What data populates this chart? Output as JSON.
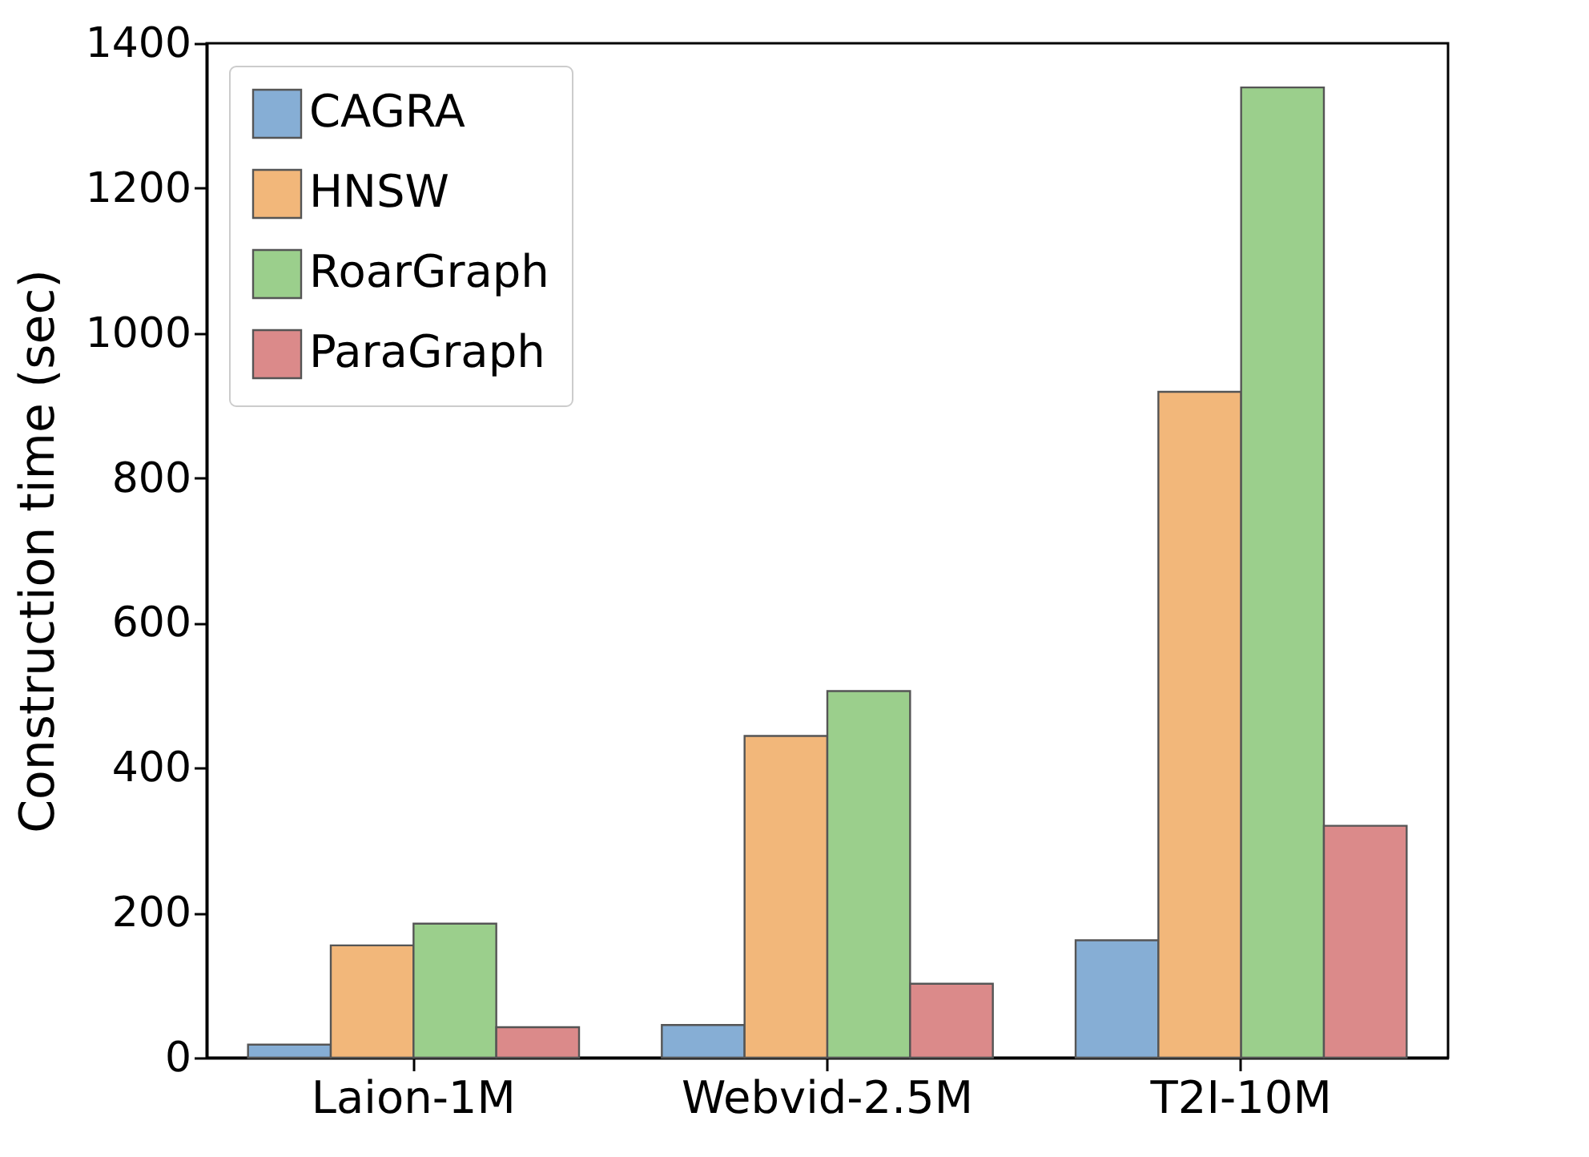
{
  "chart_data": {
    "type": "bar",
    "ylabel": "Construction time (sec)",
    "categories": [
      "Laion-1M",
      "Webvid-2.5M",
      "T2I-10M"
    ],
    "series": [
      {
        "name": "CAGRA",
        "color": "#86aed5",
        "values": [
          18,
          45,
          162
        ]
      },
      {
        "name": "HNSW",
        "color": "#f2b77a",
        "values": [
          155,
          444,
          919
        ]
      },
      {
        "name": "RoarGraph",
        "color": "#9bcf8c",
        "values": [
          185,
          506,
          1339
        ]
      },
      {
        "name": "ParaGraph",
        "color": "#db8a8a",
        "values": [
          42,
          102,
          320
        ]
      }
    ],
    "ylim": [
      0,
      1400
    ],
    "yticks": [
      0,
      200,
      400,
      600,
      800,
      1000,
      1200,
      1400
    ],
    "legend": "top left"
  }
}
